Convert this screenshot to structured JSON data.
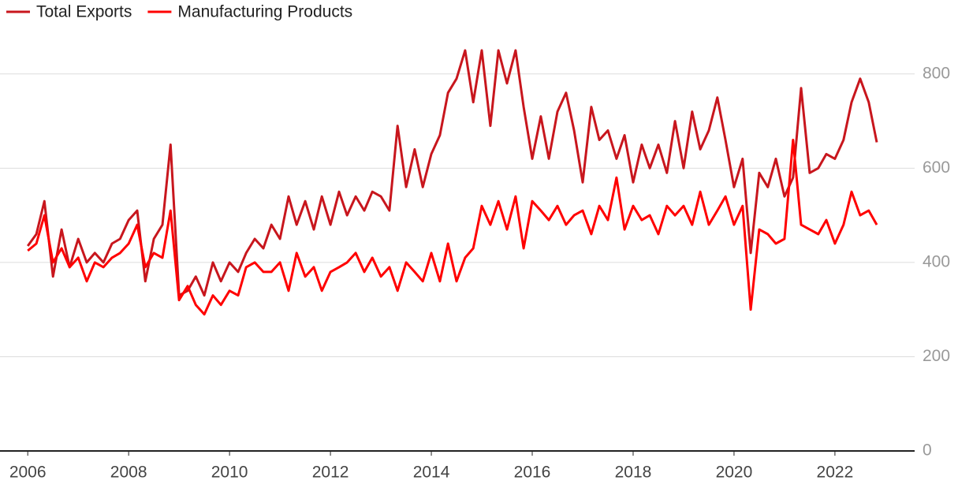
{
  "chart_data": {
    "type": "line",
    "x": [
      2006,
      2006.17,
      2006.33,
      2006.5,
      2006.67,
      2006.83,
      2007,
      2007.17,
      2007.33,
      2007.5,
      2007.67,
      2007.83,
      2008,
      2008.17,
      2008.33,
      2008.5,
      2008.67,
      2008.83,
      2009,
      2009.17,
      2009.33,
      2009.5,
      2009.67,
      2009.83,
      2010,
      2010.17,
      2010.33,
      2010.5,
      2010.67,
      2010.83,
      2011,
      2011.17,
      2011.33,
      2011.5,
      2011.67,
      2011.83,
      2012,
      2012.17,
      2012.33,
      2012.5,
      2012.67,
      2012.83,
      2013,
      2013.17,
      2013.33,
      2013.5,
      2013.67,
      2013.83,
      2014,
      2014.17,
      2014.33,
      2014.5,
      2014.67,
      2014.83,
      2015,
      2015.17,
      2015.33,
      2015.5,
      2015.67,
      2015.83,
      2016,
      2016.17,
      2016.33,
      2016.5,
      2016.67,
      2016.83,
      2017,
      2017.17,
      2017.33,
      2017.5,
      2017.67,
      2017.83,
      2018,
      2018.17,
      2018.33,
      2018.5,
      2018.67,
      2018.83,
      2019,
      2019.17,
      2019.33,
      2019.5,
      2019.67,
      2019.83,
      2020,
      2020.17,
      2020.33,
      2020.5,
      2020.67,
      2020.83,
      2021,
      2021.17,
      2021.33,
      2021.5,
      2021.67,
      2021.83,
      2022,
      2022.17,
      2022.33,
      2022.5,
      2022.67,
      2022.83
    ],
    "series": [
      {
        "name": "Total Exports",
        "color": "#c8161d",
        "values": [
          435,
          460,
          530,
          370,
          470,
          390,
          450,
          400,
          420,
          400,
          440,
          450,
          490,
          510,
          360,
          450,
          480,
          650,
          330,
          340,
          370,
          330,
          400,
          360,
          400,
          380,
          420,
          450,
          430,
          480,
          450,
          540,
          480,
          530,
          470,
          540,
          480,
          550,
          500,
          540,
          510,
          550,
          540,
          510,
          690,
          560,
          640,
          560,
          630,
          670,
          760,
          790,
          850,
          740,
          850,
          690,
          850,
          780,
          850,
          730,
          620,
          710,
          620,
          720,
          760,
          680,
          570,
          730,
          660,
          680,
          620,
          670,
          570,
          650,
          600,
          650,
          590,
          700,
          600,
          720,
          640,
          680,
          750,
          660,
          560,
          620,
          420,
          590,
          560,
          620,
          540,
          580,
          770,
          590,
          600,
          630,
          620,
          660,
          740,
          790,
          740,
          655
        ]
      },
      {
        "name": "Manufacturing Products",
        "color": "#ff0000",
        "values": [
          425,
          440,
          500,
          400,
          430,
          390,
          410,
          360,
          400,
          390,
          410,
          420,
          440,
          480,
          390,
          420,
          410,
          510,
          320,
          350,
          310,
          290,
          330,
          310,
          340,
          330,
          390,
          400,
          380,
          380,
          400,
          340,
          420,
          370,
          390,
          340,
          380,
          390,
          400,
          420,
          380,
          410,
          370,
          390,
          340,
          400,
          380,
          360,
          420,
          360,
          440,
          360,
          410,
          430,
          520,
          480,
          530,
          470,
          540,
          430,
          530,
          510,
          490,
          520,
          480,
          500,
          510,
          460,
          520,
          490,
          580,
          470,
          520,
          490,
          500,
          460,
          520,
          500,
          520,
          480,
          550,
          480,
          510,
          540,
          480,
          520,
          300,
          470,
          460,
          440,
          450,
          660,
          480,
          470,
          460,
          490,
          440,
          480,
          550,
          500,
          510,
          480
        ]
      }
    ],
    "xlim": [
      2005.45,
      2023.58
    ],
    "xticks": [
      2006,
      2008,
      2010,
      2012,
      2014,
      2016,
      2018,
      2020,
      2022
    ],
    "ylim": [
      0,
      890
    ],
    "yticks": [
      0,
      200,
      400,
      600,
      800
    ],
    "grid": true,
    "legend": "top-left"
  }
}
